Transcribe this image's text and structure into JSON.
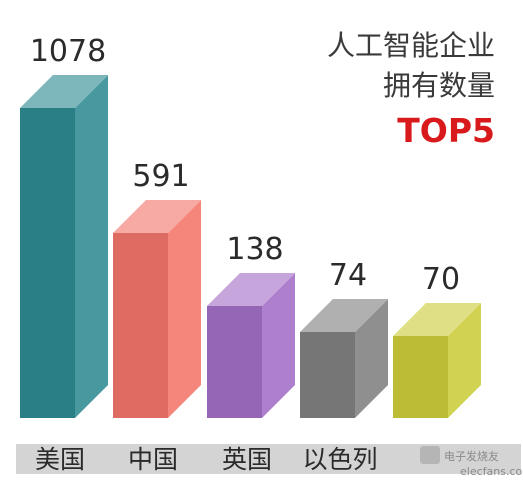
{
  "chart_data": {
    "type": "bar",
    "title_lines": [
      "人工智能企业",
      "拥有数量"
    ],
    "title_highlight": "TOP5",
    "categories": [
      "美国",
      "中国",
      "英国",
      "以色列",
      ""
    ],
    "values": [
      1078,
      591,
      138,
      74,
      70
    ],
    "colors": [
      "#2e8a92",
      "#f2756a",
      "#a26ec6",
      "#808080",
      "#cccc3a"
    ],
    "xlabel": "",
    "ylabel": "",
    "grid": false,
    "legend": "none"
  },
  "watermark": {
    "text": "elecfans.com",
    "logo_text": "电子发烧友"
  }
}
